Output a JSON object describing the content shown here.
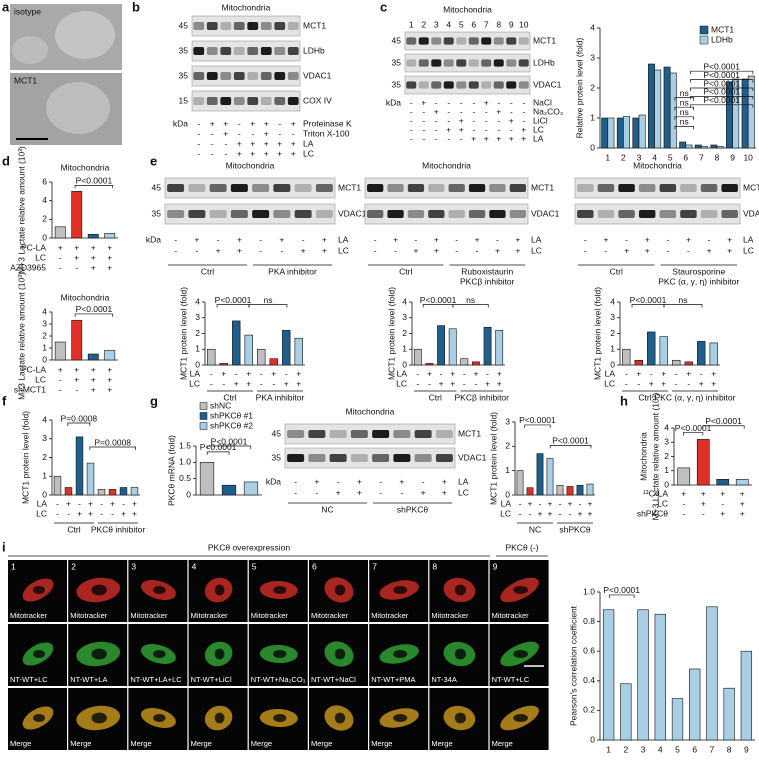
{
  "panels": {
    "a": {
      "letter": "a",
      "labels": [
        "isotype",
        "MCT1"
      ]
    },
    "b": {
      "letter": "b",
      "title": "Mitochondria",
      "markers": [
        "45",
        "35",
        "35",
        "15"
      ],
      "bands": [
        "MCT1",
        "LDHb",
        "VDAC1",
        "COX IV"
      ],
      "kda": "kDa",
      "rows": [
        {
          "label": "Proteinase K",
          "signs": [
            "-",
            "+",
            "+",
            "-",
            "+",
            "+",
            "-",
            "+"
          ]
        },
        {
          "label": "Triton X-100",
          "signs": [
            "-",
            "-",
            "+",
            "-",
            "-",
            "+",
            "-",
            "-"
          ]
        },
        {
          "label": "LA",
          "signs": [
            "-",
            "-",
            "-",
            "+",
            "+",
            "+",
            "+",
            "+"
          ]
        },
        {
          "label": "LC",
          "signs": [
            "-",
            "-",
            "-",
            "+",
            "+",
            "+",
            "+",
            "+"
          ]
        }
      ]
    },
    "c": {
      "letter": "c",
      "title": "Mitochondria",
      "lanes": [
        "1",
        "2",
        "3",
        "4",
        "5",
        "6",
        "7",
        "8",
        "9",
        "10"
      ],
      "markers": [
        "45",
        "35",
        "35"
      ],
      "bands": [
        "MCT1",
        "LDHb",
        "VDAC1"
      ],
      "kda": "kDa",
      "rows": [
        {
          "label": "NaCl",
          "signs": [
            "-",
            "+",
            "-",
            "-",
            "-",
            "-",
            "+",
            "-",
            "-",
            "-"
          ]
        },
        {
          "label": "Na₂CO₃",
          "signs": [
            "-",
            "-",
            "+",
            "-",
            "-",
            "-",
            "-",
            "+",
            "-",
            "-"
          ]
        },
        {
          "label": "LiCl",
          "signs": [
            "-",
            "-",
            "-",
            "-",
            "+",
            "-",
            "-",
            "-",
            "+",
            "-"
          ]
        },
        {
          "label": "LC",
          "signs": [
            "-",
            "-",
            "-",
            "+",
            "+",
            "-",
            "-",
            "-",
            "-",
            "+"
          ]
        },
        {
          "label": "LA",
          "signs": [
            "-",
            "-",
            "-",
            "-",
            "-",
            "+",
            "+",
            "+",
            "+",
            "+"
          ]
        }
      ]
    },
    "d": {
      "letter": "d"
    },
    "e": {
      "letter": "e",
      "blots": [
        {
          "title": "Mitochondria",
          "markers": [
            "45",
            "35"
          ],
          "bands": [
            "MCT1",
            "VDAC1"
          ],
          "kda": "kDa",
          "rows": [
            {
              "label": "LA",
              "signs": [
                "-",
                "+",
                "-",
                "+",
                "-",
                "+",
                "-",
                "+"
              ]
            },
            {
              "label": "LC",
              "signs": [
                "-",
                "-",
                "+",
                "+",
                "-",
                "-",
                "+",
                "+"
              ]
            }
          ],
          "groups": [
            [
              "Ctrl"
            ],
            [
              "PKA inhibitor"
            ]
          ]
        },
        {
          "title": "Mitochondria",
          "markers": [],
          "bands": [
            "MCT1",
            "VDAC1"
          ],
          "rows": [
            {
              "label": "LA",
              "signs": [
                "-",
                "+",
                "-",
                "+",
                "-",
                "+",
                "-",
                "+"
              ]
            },
            {
              "label": "LC",
              "signs": [
                "-",
                "-",
                "+",
                "+",
                "-",
                "-",
                "+",
                "+"
              ]
            }
          ],
          "groups": [
            [
              "Ctrl"
            ],
            [
              "Ruboxistaurin",
              "PKCβ inhibitor"
            ]
          ]
        },
        {
          "title": "Mitochondria",
          "markers": [],
          "bands": [
            "MCT1",
            "VDAC1"
          ],
          "rows": [
            {
              "label": "LA",
              "signs": [
                "-",
                "+",
                "-",
                "+",
                "-",
                "+",
                "-",
                "+"
              ]
            },
            {
              "label": "LC",
              "signs": [
                "-",
                "-",
                "+",
                "+",
                "-",
                "-",
                "+",
                "+"
              ]
            }
          ],
          "groups": [
            [
              "Ctrl"
            ],
            [
              "Staurosporine",
              "PKC (α, γ, η) inhibitor"
            ]
          ]
        }
      ]
    },
    "f": {
      "letter": "f"
    },
    "g": {
      "letter": "g",
      "blot": {
        "title": "Mitochondria",
        "markers": [
          "45",
          "35"
        ],
        "bands": [
          "MCT1",
          "VDAC1"
        ],
        "kda": "kDa",
        "rows": [
          {
            "label": "LA",
            "signs": [
              "-",
              "+",
              "-",
              "+",
              "-",
              "+",
              "-",
              "+"
            ]
          },
          {
            "label": "LC",
            "signs": [
              "-",
              "-",
              "+",
              "+",
              "-",
              "-",
              "+",
              "+"
            ]
          }
        ],
        "groups": [
          [
            "NC"
          ],
          [
            "shPKCθ"
          ]
        ]
      }
    },
    "h": {
      "letter": "h"
    },
    "i": {
      "letter": "i",
      "header": "PKCθ overexpression",
      "header2": "PKCθ (-)",
      "numbers": [
        "1",
        "2",
        "3",
        "4",
        "5",
        "6",
        "7",
        "8",
        "9"
      ],
      "stain": [
        "Mitotracker",
        "Mitotracker",
        "Mitotracker",
        "Mitotracker",
        "Mitotracker",
        "Mitotracker",
        "Mitotracker",
        "Mitotracker",
        "Mitotracker"
      ],
      "treatment": [
        "NT-WT+LC",
        "NT-WT+LA",
        "NT-WT+LA+LC",
        "NT-WT+LiCl",
        "NT-WT+Na₂CO₃",
        "NT-WT+NaCl",
        "NT-WT+PMA",
        "NT-34A",
        "NT-WT+LC"
      ],
      "merge": [
        "Merge",
        "Merge",
        "Merge",
        "Merge",
        "Merge",
        "Merge",
        "Merge",
        "Merge",
        "Merge"
      ]
    }
  },
  "chart_data": [
    {
      "type": "bar",
      "ylabel": "Relative protein level (fold)",
      "categories": [
        "1",
        "2",
        "3",
        "4",
        "5",
        "6",
        "7",
        "8",
        "9",
        "10"
      ],
      "series": [
        {
          "name": "MCT1",
          "color": "#1f5f8b",
          "values": [
            1,
            1,
            1,
            2.8,
            2.7,
            0.2,
            0.1,
            0.1,
            2.2,
            2.3
          ]
        },
        {
          "name": "LDHb",
          "color": "#a9cfe6",
          "values": [
            1,
            1.05,
            1.1,
            2.6,
            2.5,
            0.1,
            0.05,
            0.05,
            2.3,
            2.4
          ]
        }
      ],
      "ylim": [
        0,
        4
      ],
      "yticks": [
        0,
        1,
        2,
        3,
        4
      ],
      "annotations": [
        "P<0.0001",
        "P<0.0001",
        "P<0.0001",
        "P<0.0001",
        "P<0.0001",
        "ns",
        "ns",
        "ns",
        "ns"
      ]
    },
    {
      "type": "bar",
      "title": "Mitochondria",
      "ylabel": "M+3 Lactate relative amount (10³)",
      "values": [
        1.2,
        5,
        0.4,
        0.5
      ],
      "colors": [
        "#bfbfbf",
        "#e0302a",
        "#1f5f8b",
        "#a9cfe6"
      ],
      "ylim": [
        0,
        6
      ],
      "yticks": [
        0,
        2,
        4,
        6
      ],
      "rows": [
        {
          "label": "¹³C-LA",
          "signs": [
            "+",
            "+",
            "+",
            "+"
          ]
        },
        {
          "label": "LC",
          "signs": [
            "-",
            "+",
            "+",
            "+"
          ]
        },
        {
          "label": "AZD3965",
          "signs": [
            "-",
            "-",
            "+",
            "+"
          ]
        }
      ],
      "annotations": [
        "P<0.0001"
      ]
    },
    {
      "type": "bar",
      "title": "Mitochondria",
      "ylabel": "M+3 Lactate relative amount (10³)",
      "values": [
        1.5,
        3.3,
        0.5,
        0.8
      ],
      "colors": [
        "#bfbfbf",
        "#e0302a",
        "#1f5f8b",
        "#a9cfe6"
      ],
      "ylim": [
        0,
        4
      ],
      "yticks": [
        0,
        1,
        2,
        3,
        4
      ],
      "rows": [
        {
          "label": "¹³C-LA",
          "signs": [
            "+",
            "+",
            "+",
            "+"
          ]
        },
        {
          "label": "LC",
          "signs": [
            "-",
            "+",
            "+",
            "+"
          ]
        },
        {
          "label": "shMCT1",
          "signs": [
            "-",
            "-",
            "+",
            "+"
          ]
        }
      ],
      "annotations": [
        "P<0.0001"
      ]
    },
    {
      "type": "bar",
      "ylabel": "MCT1 protein level (fold)",
      "values": [
        1,
        0.1,
        2.8,
        1.9,
        1,
        0.4,
        2.2,
        1.7
      ],
      "colors": [
        "#bfbfbf",
        "#e0302a",
        "#1f5f8b",
        "#a9cfe6",
        "#bfbfbf",
        "#e0302a",
        "#1f5f8b",
        "#a9cfe6"
      ],
      "ylim": [
        0,
        4
      ],
      "yticks": [
        0,
        1,
        2,
        3,
        4
      ],
      "rows": [
        {
          "label": "LA",
          "signs": [
            "-",
            "+",
            "-",
            "+",
            "-",
            "+",
            "-",
            "+"
          ]
        },
        {
          "label": "LC",
          "signs": [
            "-",
            "-",
            "+",
            "+",
            "-",
            "-",
            "+",
            "+"
          ]
        }
      ],
      "groups": [
        "Ctrl",
        "PKA inhibitor"
      ],
      "annotations": [
        "P<0.0001",
        "ns"
      ]
    },
    {
      "type": "bar",
      "ylabel": "MCT1 protein level (fold)",
      "values": [
        1,
        0.1,
        2.5,
        2.3,
        0.4,
        0.2,
        2.4,
        2.2
      ],
      "colors": [
        "#bfbfbf",
        "#e0302a",
        "#1f5f8b",
        "#a9cfe6",
        "#bfbfbf",
        "#e0302a",
        "#1f5f8b",
        "#a9cfe6"
      ],
      "ylim": [
        0,
        4
      ],
      "yticks": [
        0,
        1,
        2,
        3,
        4
      ],
      "rows": [
        {
          "label": "LA",
          "signs": [
            "-",
            "+",
            "-",
            "+",
            "-",
            "+",
            "-",
            "+"
          ]
        },
        {
          "label": "LC",
          "signs": [
            "-",
            "-",
            "+",
            "+",
            "-",
            "-",
            "+",
            "+"
          ]
        }
      ],
      "groups": [
        "Ctrl",
        "PKCβ inhibitor"
      ],
      "annotations": [
        "P<0.0001",
        "ns"
      ]
    },
    {
      "type": "bar",
      "ylabel": "MCT1 protein level (fold)",
      "values": [
        1,
        0.3,
        2.1,
        1.8,
        0.3,
        0.2,
        1.5,
        1.4
      ],
      "colors": [
        "#bfbfbf",
        "#e0302a",
        "#1f5f8b",
        "#a9cfe6",
        "#bfbfbf",
        "#e0302a",
        "#1f5f8b",
        "#a9cfe6"
      ],
      "ylim": [
        0,
        4
      ],
      "yticks": [
        0,
        1,
        2,
        3,
        4
      ],
      "rows": [
        {
          "label": "LA",
          "signs": [
            "-",
            "+",
            "-",
            "+",
            "-",
            "+",
            "-",
            "+"
          ]
        },
        {
          "label": "LC",
          "signs": [
            "-",
            "-",
            "+",
            "+",
            "-",
            "-",
            "+",
            "+"
          ]
        }
      ],
      "groups": [
        "Ctrl",
        "PKC (α, γ, η) inhibitor"
      ],
      "annotations": [
        "P<0.0001",
        "ns"
      ]
    },
    {
      "type": "bar",
      "ylabel": "MCT1 protein level (fold)",
      "values": [
        1,
        0.4,
        3.1,
        1.7,
        0.3,
        0.3,
        0.4,
        0.4
      ],
      "colors": [
        "#bfbfbf",
        "#e0302a",
        "#1f5f8b",
        "#a9cfe6",
        "#bfbfbf",
        "#e0302a",
        "#1f5f8b",
        "#a9cfe6"
      ],
      "ylim": [
        0,
        4
      ],
      "yticks": [
        0,
        1,
        2,
        3,
        4
      ],
      "rows": [
        {
          "label": "LA",
          "signs": [
            "-",
            "+",
            "-",
            "+",
            "-",
            "+",
            "-",
            "+"
          ]
        },
        {
          "label": "LC",
          "signs": [
            "-",
            "-",
            "+",
            "+",
            "-",
            "-",
            "+",
            "+"
          ]
        }
      ],
      "groups": [
        "Ctrl",
        "PKCθ inhibitor"
      ],
      "annotations": [
        "P=0.0008",
        "P=0.0008"
      ]
    },
    {
      "type": "bar",
      "ylabel": "PKCθ mRNA (fold)",
      "values": [
        1,
        0.3,
        0.4
      ],
      "colors": [
        "#bfbfbf",
        "#1f5f8b",
        "#a9cfe6"
      ],
      "legend": [
        "shNC",
        "shPKCθ #1",
        "shPKCθ #2"
      ],
      "ylim": [
        0,
        1.5
      ],
      "yticks": [
        0,
        0.5,
        {
          "value": 1,
          "label": "1.0"
        },
        1.5
      ],
      "annotations": [
        "P<0.0001",
        "P<0.0001"
      ]
    },
    {
      "type": "bar",
      "ylabel": "MCT1 protein level (fold)",
      "values": [
        1,
        0.3,
        1.7,
        1.5,
        0.4,
        0.35,
        0.4,
        0.45
      ],
      "colors": [
        "#bfbfbf",
        "#e0302a",
        "#1f5f8b",
        "#a9cfe6",
        "#bfbfbf",
        "#e0302a",
        "#1f5f8b",
        "#a9cfe6"
      ],
      "ylim": [
        0,
        3
      ],
      "yticks": [
        0,
        1,
        2,
        3
      ],
      "rows": [
        {
          "label": "LA",
          "signs": [
            "-",
            "+",
            "-",
            "+",
            "-",
            "+",
            "-",
            "+"
          ]
        },
        {
          "label": "LC",
          "signs": [
            "-",
            "-",
            "+",
            "+",
            "-",
            "-",
            "+",
            "+"
          ]
        }
      ],
      "groups": [
        "NC",
        "shPKCθ"
      ],
      "annotations": [
        "P<0.0001",
        "P<0.0001"
      ]
    },
    {
      "type": "bar",
      "title": "Mitochondria",
      "ylabel": "M+3 Lactate relative amount (10³)",
      "values": [
        1.2,
        3.2,
        0.4,
        0.4
      ],
      "colors": [
        "#bfbfbf",
        "#e0302a",
        "#1f5f8b",
        "#a9cfe6"
      ],
      "ylim": [
        0,
        4
      ],
      "yticks": [
        0,
        1,
        2,
        3,
        4
      ],
      "rows": [
        {
          "label": "¹³C-LA",
          "signs": [
            "+",
            "+",
            "+",
            "+"
          ]
        },
        {
          "label": "LC",
          "signs": [
            "-",
            "+",
            "-",
            "+"
          ]
        },
        {
          "label": "shPKCθ",
          "signs": [
            "-",
            "-",
            "+",
            "+"
          ]
        }
      ],
      "annotations": [
        "P<0.0001",
        "P<0.0001"
      ]
    },
    {
      "type": "bar",
      "ylabel": "Pearson's correlation coefficient",
      "categories": [
        "1",
        "2",
        "3",
        "4",
        "5",
        "6",
        "7",
        "8",
        "9"
      ],
      "values": [
        0.88,
        0.38,
        0.88,
        0.85,
        0.28,
        0.48,
        0.9,
        0.35,
        0.6
      ],
      "colors": [
        "#a9cfe6",
        "#a9cfe6",
        "#a9cfe6",
        "#a9cfe6",
        "#a9cfe6",
        "#a9cfe6",
        "#a9cfe6",
        "#a9cfe6",
        "#a9cfe6"
      ],
      "ylim": [
        0,
        1
      ],
      "yticks": [
        0,
        0.2,
        0.4,
        0.6,
        0.8,
        {
          "value": 1,
          "label": "1.0"
        }
      ],
      "annotations": [
        "P<0.0001"
      ]
    }
  ]
}
